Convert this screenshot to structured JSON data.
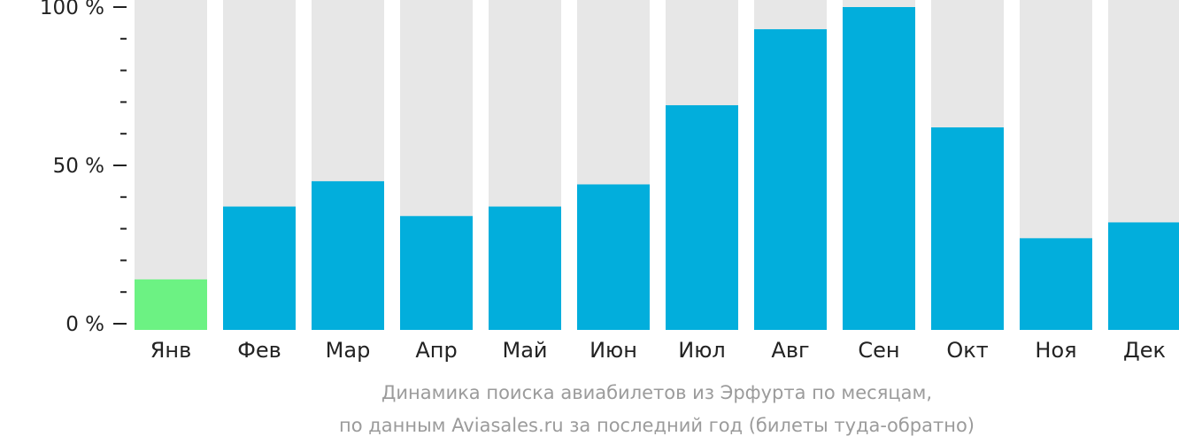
{
  "chart_data": {
    "type": "bar",
    "categories": [
      "Янв",
      "Фев",
      "Мар",
      "Апр",
      "Май",
      "Июн",
      "Июл",
      "Авг",
      "Сен",
      "Окт",
      "Ноя",
      "Дек"
    ],
    "values": [
      14,
      37,
      45,
      34,
      37,
      44,
      69,
      93,
      100,
      62,
      27,
      32
    ],
    "ylim": [
      0,
      100
    ],
    "yticks": [
      {
        "value": 100,
        "label": "100 %"
      },
      {
        "value": 50,
        "label": "50 %"
      },
      {
        "value": 0,
        "label": "0 %"
      }
    ],
    "minor_tick_step": 10,
    "caption_line1": "Динамика поиска авиабилетов из Эрфурта по месяцам,",
    "caption_line2": "по данным Aviasales.ru за последний год (билеты туда-обратно)",
    "highlight_index": 0,
    "colors": {
      "bar": "#02aedc",
      "highlight_bar": "#6cf283",
      "background_bar": "#e7e7e7",
      "axis": "#222222",
      "caption": "#9b9b9b"
    }
  }
}
